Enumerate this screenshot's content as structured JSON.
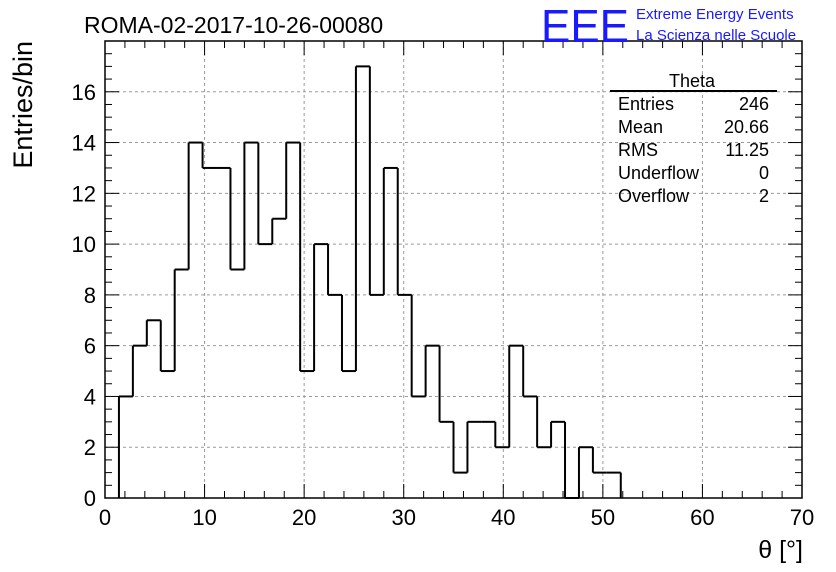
{
  "header": {
    "run_title": "ROMA-02-2017-10-26-00080",
    "logo_text": "EEE",
    "logo_line1": "Extreme Energy Events",
    "logo_line2": "La Scienza nelle Scuole",
    "logo_color": "#1a1aff"
  },
  "stats": {
    "name": "Theta",
    "rows": [
      {
        "label": "Entries",
        "value": "246"
      },
      {
        "label": "Mean",
        "value": "20.66"
      },
      {
        "label": "RMS",
        "value": "11.25"
      },
      {
        "label": "Underflow",
        "value": "0"
      },
      {
        "label": "Overflow",
        "value": "2"
      }
    ]
  },
  "chart_data": {
    "type": "histogram",
    "xlabel": "θ [°]",
    "ylabel": "Entries/bin",
    "xlim": [
      0,
      70
    ],
    "ylim": [
      0,
      18
    ],
    "xticks": [
      0,
      10,
      20,
      30,
      40,
      50,
      60,
      70
    ],
    "yticks": [
      0,
      2,
      4,
      6,
      8,
      10,
      12,
      14,
      16
    ],
    "grid": true,
    "bin_width": 1.4,
    "bin_edges_start": 1.4,
    "values": [
      4,
      6,
      7,
      5,
      9,
      14,
      13,
      13,
      9,
      14,
      10,
      11,
      14,
      5,
      10,
      8,
      5,
      17,
      8,
      13,
      8,
      4,
      6,
      3,
      1,
      3,
      3,
      2,
      6,
      4,
      2,
      3,
      0,
      2,
      1,
      1
    ]
  }
}
